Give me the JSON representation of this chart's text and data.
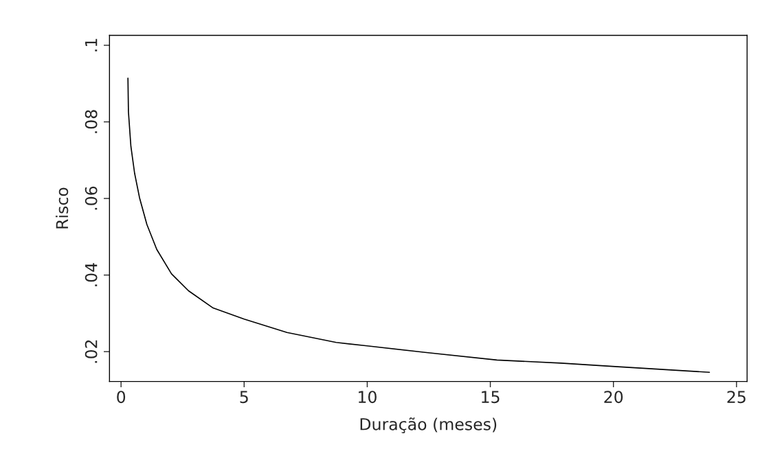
{
  "chart_data": {
    "type": "line",
    "xlabel": "Duração (meses)",
    "ylabel": "Risco",
    "xlim": [
      -0.47,
      25.43
    ],
    "ylim": [
      0.0122,
      0.1026
    ],
    "xticks": [
      0,
      5,
      10,
      15,
      20,
      25
    ],
    "yticks": [
      {
        "value": 0.02,
        "label": ".02"
      },
      {
        "value": 0.04,
        "label": ".04"
      },
      {
        "value": 0.06,
        "label": ".06"
      },
      {
        "value": 0.08,
        "label": ".08"
      },
      {
        "value": 0.1,
        "label": ".1"
      }
    ],
    "grid": false,
    "series": [
      {
        "color": "#000000",
        "x": [
          0.28,
          0.3,
          0.4,
          0.55,
          0.75,
          1.05,
          1.45,
          2.05,
          2.74,
          3.74,
          5,
          6.74,
          8.74,
          10.0,
          12.35,
          15.27,
          17.87,
          20.07,
          23.9
        ],
        "values": [
          0.0914,
          0.0826,
          0.0736,
          0.0666,
          0.0602,
          0.0532,
          0.0467,
          0.0403,
          0.0359,
          0.0314,
          0.0285,
          0.025,
          0.0224,
          0.0215,
          0.0198,
          0.0178,
          0.017,
          0.0161,
          0.0146
        ]
      }
    ]
  }
}
